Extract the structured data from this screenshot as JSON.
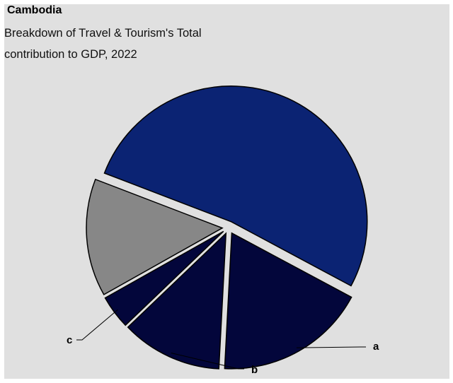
{
  "chart_data": {
    "type": "pie",
    "title": "Cambodia",
    "subtitle": "Breakdown of Travel & Tourism's Total contribution to GDP, 2022",
    "slices": [
      {
        "label": "",
        "value": 52,
        "color": "#0b2373"
      },
      {
        "label": "a",
        "value": 18,
        "color": "#03063b"
      },
      {
        "label": "b",
        "value": 12,
        "color": "#03063b"
      },
      {
        "label": "c",
        "value": 4,
        "color": "#03063b"
      },
      {
        "label": "",
        "value": 14,
        "color": "#878787"
      }
    ],
    "start_angle_deg": 201,
    "direction": "clockwise",
    "exploded": true,
    "legend": "none",
    "slice_border_color": "#000000"
  }
}
